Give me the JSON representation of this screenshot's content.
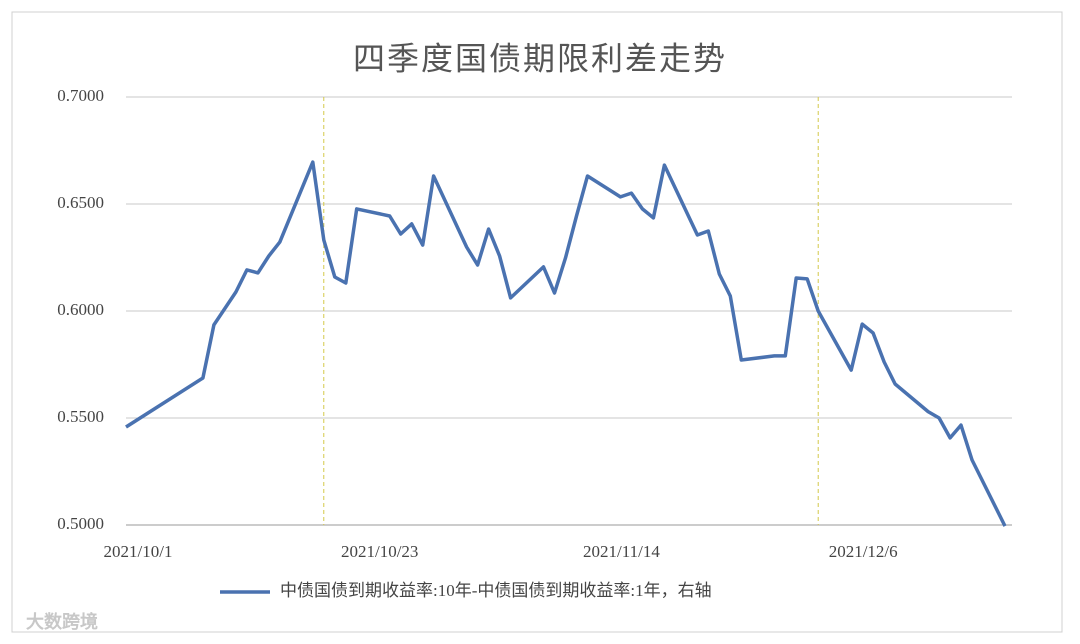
{
  "chart_data": {
    "type": "line",
    "title": "四季度国债期限利差走势",
    "x": [
      "2021/10/1",
      "2021/10/8",
      "2021/10/9",
      "2021/10/11",
      "2021/10/12",
      "2021/10/13",
      "2021/10/14",
      "2021/10/15",
      "2021/10/18",
      "2021/10/19",
      "2021/10/20",
      "2021/10/21",
      "2021/10/22",
      "2021/10/25",
      "2021/10/26",
      "2021/10/27",
      "2021/10/28",
      "2021/10/29",
      "2021/11/1",
      "2021/11/2",
      "2021/11/3",
      "2021/11/4",
      "2021/11/5",
      "2021/11/8",
      "2021/11/9",
      "2021/11/10",
      "2021/11/11",
      "2021/11/12",
      "2021/11/15",
      "2021/11/16",
      "2021/11/17",
      "2021/11/18",
      "2021/11/19",
      "2021/11/22",
      "2021/11/23",
      "2021/11/24",
      "2021/11/25",
      "2021/11/26",
      "2021/11/29",
      "2021/11/30",
      "2021/12/1",
      "2021/12/2",
      "2021/12/3",
      "2021/12/6",
      "2021/12/7",
      "2021/12/8",
      "2021/12/9",
      "2021/12/10",
      "2021/12/13",
      "2021/12/14",
      "2021/12/15",
      "2021/12/16",
      "2021/12/17",
      "2021/12/20"
    ],
    "series": [
      {
        "name": "中债国债到期收益率:10年-中债国债到期收益率:1年，右轴",
        "color": "#4a72b0",
        "values": [
          0.5458,
          0.5687,
          0.5935,
          0.6089,
          0.6192,
          0.6178,
          0.6257,
          0.6322,
          0.6696,
          0.6332,
          0.6159,
          0.6131,
          0.6477,
          0.6444,
          0.636,
          0.6407,
          0.6308,
          0.6631,
          0.6299,
          0.6215,
          0.6383,
          0.6257,
          0.6061,
          0.6206,
          0.6084,
          0.6248,
          0.6444,
          0.6631,
          0.6533,
          0.6551,
          0.6477,
          0.6435,
          0.6682,
          0.6355,
          0.6374,
          0.6173,
          0.607,
          0.5771,
          0.579,
          0.579,
          0.6154,
          0.615,
          0.6,
          0.5724,
          0.5939,
          0.5897,
          0.5762,
          0.5659,
          0.553,
          0.55,
          0.5407,
          0.5467,
          0.5304,
          0.4995
        ]
      }
    ],
    "xlim": [
      "2021/10/1",
      "2021/12/20"
    ],
    "xticks": [
      "2021/10/1",
      "2021/10/23",
      "2021/11/14",
      "2021/12/6"
    ],
    "ylim": [
      0.5,
      0.7
    ],
    "yticks": [
      {
        "value": 0.5,
        "label": "0.5000"
      },
      {
        "value": 0.55,
        "label": "0.5500"
      },
      {
        "value": 0.6,
        "label": "0.6000"
      },
      {
        "value": 0.65,
        "label": "0.6500"
      },
      {
        "value": 0.7,
        "label": "0.7000"
      }
    ],
    "vlines": [
      "2021/10/19",
      "2021/12/3"
    ],
    "vline_color": "#d4c94a",
    "grid": true,
    "legend": "bottom",
    "watermark": "大数跨境"
  }
}
